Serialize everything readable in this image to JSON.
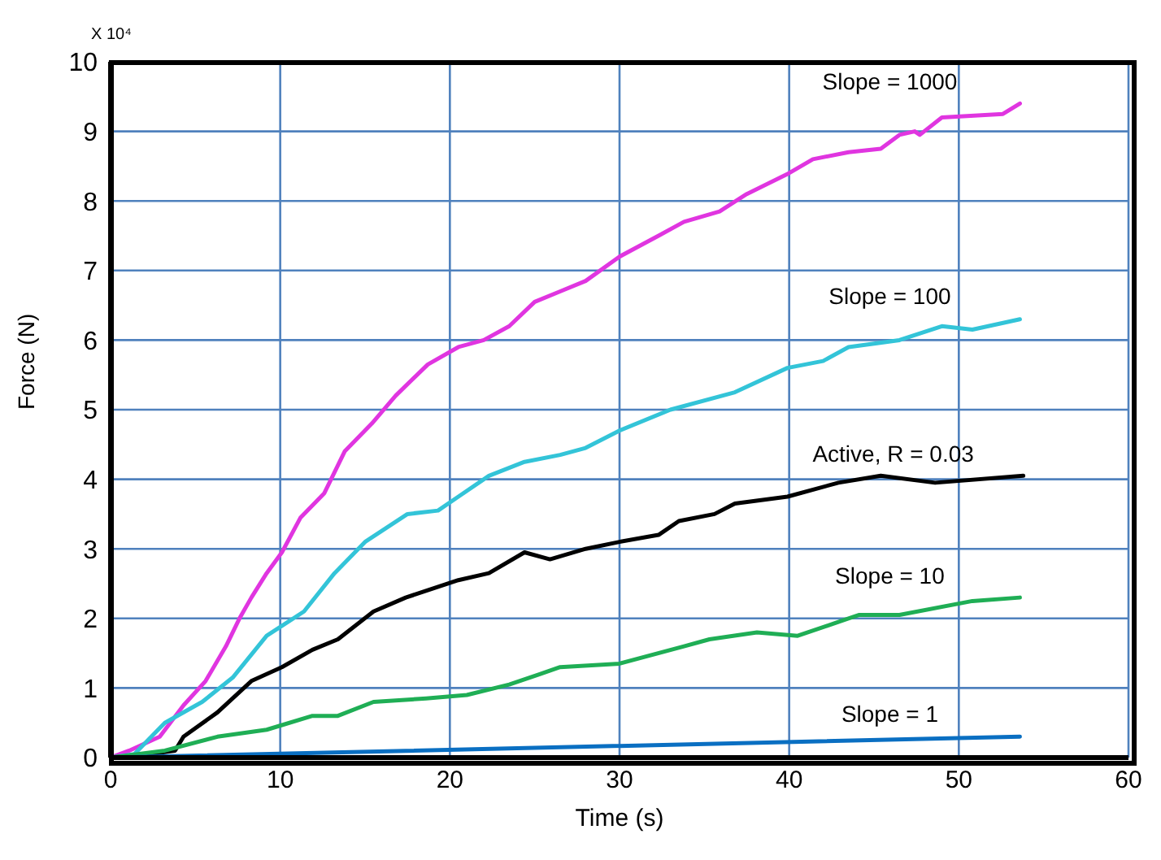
{
  "chart_data": {
    "type": "line",
    "xlabel": "Time (s)",
    "ylabel": "Force (N)",
    "xlim": [
      0,
      60
    ],
    "xticks": [
      0,
      10,
      20,
      30,
      40,
      50,
      60
    ],
    "ylim": [
      0,
      10
    ],
    "yticks": [
      0,
      1,
      2,
      3,
      4,
      5,
      6,
      7,
      8,
      9,
      10
    ],
    "grid": true,
    "marker": "none",
    "line_style": "solid",
    "annotations": [
      "X 10⁴"
    ],
    "series": [
      {
        "name": "Slope = 1000",
        "color": "#e035e0",
        "x": [
          0,
          1.1,
          2.9,
          4.3,
          5.6,
          6.8,
          7.6,
          8.3,
          9.2,
          10.1,
          11.2,
          12.6,
          13.8,
          15.4,
          16.8,
          18.7,
          20.5,
          22,
          23.5,
          25,
          26.5,
          28,
          30,
          32.3,
          33.8,
          35.9,
          37.5,
          40,
          41.4,
          43.5,
          45.4,
          46.5,
          47.4,
          47.7,
          49,
          52.6,
          53.6
        ],
        "values": [
          0,
          0.1,
          0.3,
          0.75,
          1.1,
          1.6,
          2,
          2.3,
          2.65,
          2.95,
          3.45,
          3.8,
          4.4,
          4.8,
          5.2,
          5.65,
          5.9,
          6,
          6.2,
          6.55,
          6.7,
          6.85,
          7.2,
          7.5,
          7.7,
          7.85,
          8.1,
          8.4,
          8.6,
          8.7,
          8.75,
          8.95,
          9,
          8.95,
          9.2,
          9.25,
          9.4
        ]
      },
      {
        "name": "Slope = 100",
        "color": "#33c4d8",
        "x": [
          0,
          1.4,
          3.2,
          5.4,
          7.2,
          9.2,
          11.4,
          13.2,
          15,
          17.5,
          19.3,
          20.5,
          22.3,
          24.4,
          26.5,
          28,
          30,
          33,
          36.8,
          39.9,
          42,
          43.5,
          46.5,
          49,
          50.8,
          53.6
        ],
        "values": [
          0,
          0.05,
          0.5,
          0.8,
          1.15,
          1.75,
          2.1,
          2.65,
          3.1,
          3.5,
          3.55,
          3.75,
          4.05,
          4.25,
          4.35,
          4.45,
          4.7,
          5,
          5.25,
          5.6,
          5.7,
          5.9,
          6,
          6.2,
          6.15,
          6.3
        ]
      },
      {
        "name": "Active, R = 0.03",
        "color": "#000000",
        "x": [
          0,
          2.3,
          3.8,
          4.3,
          6.3,
          8.3,
          10.1,
          11.9,
          13.4,
          15.5,
          17.4,
          20.5,
          22.3,
          24.4,
          25.9,
          28,
          30,
          32.3,
          33.5,
          35.6,
          36.8,
          39.9,
          42.9,
          45.4,
          48.6,
          53.8
        ],
        "values": [
          0,
          0.05,
          0.1,
          0.3,
          0.65,
          1.1,
          1.3,
          1.55,
          1.7,
          2.1,
          2.3,
          2.55,
          2.65,
          2.95,
          2.85,
          3,
          3.1,
          3.2,
          3.4,
          3.5,
          3.65,
          3.75,
          3.95,
          4.05,
          3.95,
          4.05
        ]
      },
      {
        "name": "Slope = 10",
        "color": "#1fae55",
        "x": [
          0,
          3.2,
          6.3,
          9.2,
          11.9,
          13.4,
          15.5,
          18.6,
          21,
          23.5,
          25.3,
          26.5,
          30,
          33.8,
          35.3,
          38.1,
          40.5,
          44.1,
          46.5,
          50.8,
          53.6
        ],
        "values": [
          0,
          0.1,
          0.3,
          0.4,
          0.6,
          0.6,
          0.8,
          0.85,
          0.9,
          1.05,
          1.2,
          1.3,
          1.35,
          1.6,
          1.7,
          1.8,
          1.75,
          2.05,
          2.05,
          2.25,
          2.3
        ]
      },
      {
        "name": "Slope = 1",
        "color": "#0a6fc2",
        "x": [
          0,
          53.6
        ],
        "values": [
          0,
          0.3
        ]
      }
    ]
  }
}
